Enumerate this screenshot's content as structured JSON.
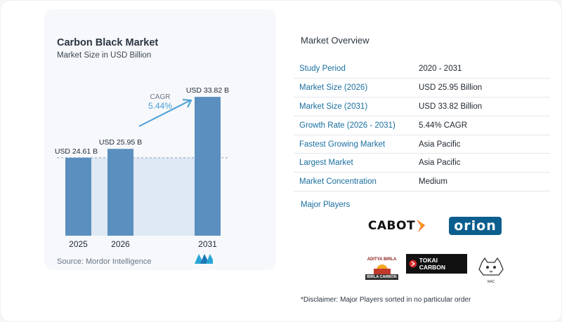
{
  "chart": {
    "title": "Carbon Black Market",
    "subtitle": "Market Size in USD Billion",
    "source": "Source:  Mordor Intelligence",
    "cagr_label": "CAGR",
    "cagr_value": "5.44%"
  },
  "chart_data": {
    "type": "bar",
    "title": "Carbon Black Market",
    "subtitle": "Market Size in USD Billion",
    "categories": [
      "2025",
      "2026",
      "2031"
    ],
    "values": [
      24.61,
      25.95,
      33.82
    ],
    "value_labels": [
      "USD 24.61 B",
      "USD 25.95 B",
      "USD 33.82 B"
    ],
    "xlabel": "",
    "ylabel": "",
    "ylim": [
      0,
      35
    ],
    "grid": false,
    "colors": {
      "bar": "#5b8fbf",
      "band": "#dfe9f3",
      "accent": "#4a9fd6",
      "dash": "#8aa0b5"
    }
  },
  "overview": {
    "title": "Market Overview",
    "rows": [
      {
        "label": "Study Period",
        "value": "2020 - 2031"
      },
      {
        "label": "Market Size (2026)",
        "value": "USD 25.95 Billion"
      },
      {
        "label": "Market Size (2031)",
        "value": "USD 33.82 Billion"
      },
      {
        "label": "Growth Rate (2026 - 2031)",
        "value": "5.44% CAGR"
      },
      {
        "label": "Fastest Growing Market",
        "value": "Asia Pacific"
      },
      {
        "label": "Largest Market",
        "value": "Asia Pacific"
      },
      {
        "label": "Market Concentration",
        "value": "Medium"
      }
    ],
    "players_label": "Major Players"
  },
  "players": {
    "cabot": "CABOT",
    "orion": "orion",
    "birla_top": "ADITYA BIRLA",
    "birla_bottom": "BIRLA CARBON",
    "tokai": "TOKAI CARBON",
    "nac": "NAC"
  },
  "disclaimer": "*Disclaimer: Major Players sorted in no particular order"
}
